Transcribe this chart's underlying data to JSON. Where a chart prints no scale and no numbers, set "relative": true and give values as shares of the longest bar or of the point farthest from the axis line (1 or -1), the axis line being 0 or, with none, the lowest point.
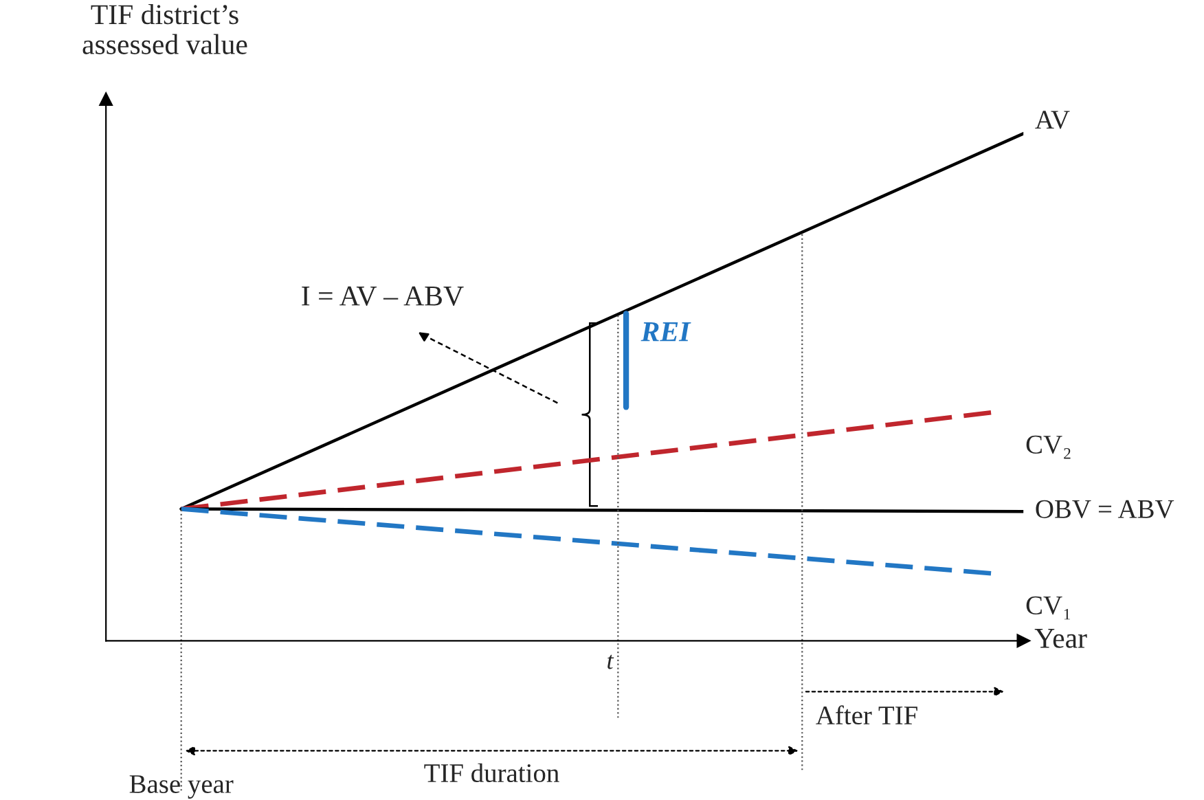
{
  "chart_data": {
    "type": "line",
    "relative": true,
    "xlabel": "Year",
    "ylabel": "TIF district’s\nassessed value",
    "legend": false,
    "categories": [
      null,
      null,
      null,
      null,
      null,
      null,
      null,
      null,
      null,
      null,
      null,
      null,
      null,
      null,
      null,
      null,
      null,
      null,
      null,
      null,
      null,
      null,
      null,
      null,
      null,
      null,
      null
    ],
    "series": [
      {
        "name": "AV",
        "color": "#000000",
        "line_style": "solid",
        "values": [
          0.26,
          null,
          null,
          null,
          null,
          null,
          null,
          null,
          null,
          null,
          null,
          null,
          null,
          null,
          null,
          null,
          null,
          null,
          null,
          null,
          null,
          null,
          null,
          null,
          null,
          null,
          1.0
        ]
      },
      {
        "name": "CV₂",
        "color": "#c0262d",
        "line_style": "dashed",
        "values": [
          0.26,
          null,
          null,
          null,
          null,
          null,
          null,
          null,
          null,
          null,
          null,
          null,
          null,
          null,
          null,
          null,
          null,
          null,
          null,
          null,
          null,
          null,
          null,
          null,
          null,
          0.45,
          null
        ]
      },
      {
        "name": "OBV = ABV",
        "color": "#000000",
        "line_style": "solid",
        "values": [
          0.26,
          null,
          null,
          null,
          null,
          null,
          null,
          null,
          null,
          null,
          null,
          null,
          null,
          null,
          null,
          null,
          null,
          null,
          null,
          null,
          null,
          null,
          null,
          null,
          null,
          null,
          0.255
        ]
      },
      {
        "name": "CV₁",
        "color": "#2277c4",
        "line_style": "dashed",
        "values": [
          0.26,
          null,
          null,
          null,
          null,
          null,
          null,
          null,
          null,
          null,
          null,
          null,
          null,
          null,
          null,
          null,
          null,
          null,
          null,
          null,
          null,
          null,
          null,
          null,
          null,
          0.133,
          null
        ]
      }
    ],
    "annotations": [
      "I = AV – ABV",
      "REI",
      "TIF duration",
      "After TIF",
      "Base year",
      "t"
    ]
  }
}
